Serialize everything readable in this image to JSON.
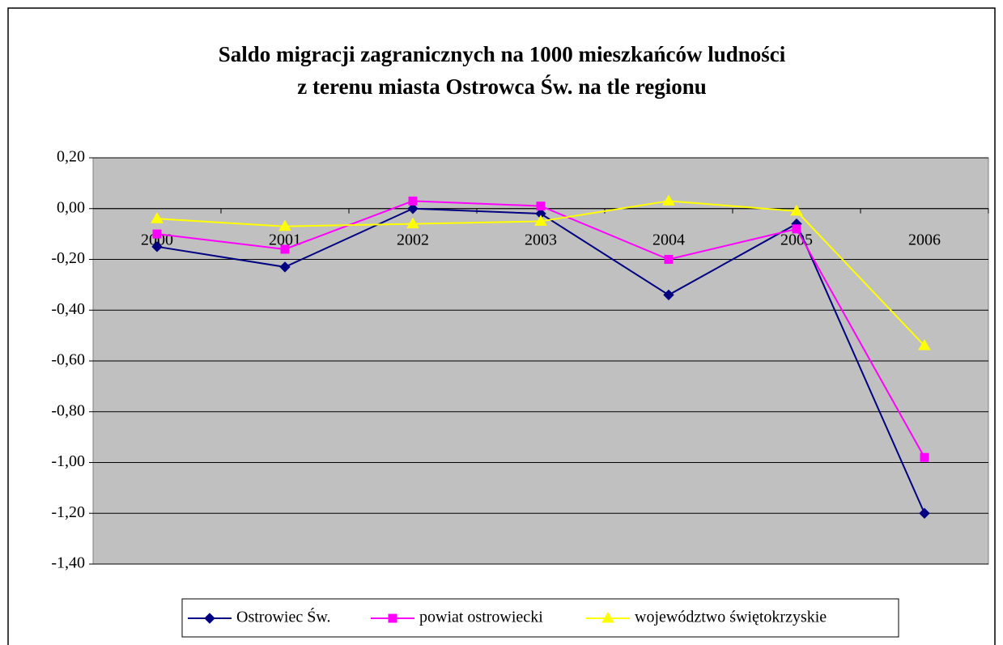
{
  "chart_data": {
    "type": "line",
    "title": [
      "Saldo migracji zagranicznych na 1000 mieszkańców ludności",
      "z terenu miasta Ostrowca Św. na tle regionu"
    ],
    "categories": [
      "2000",
      "2001",
      "2002",
      "2003",
      "2004",
      "2005",
      "2006"
    ],
    "series": [
      {
        "name": "Ostrowiec Św.",
        "color": "#000080",
        "marker": "diamond",
        "values": [
          -0.15,
          -0.23,
          0.0,
          -0.02,
          -0.34,
          -0.06,
          -1.2
        ]
      },
      {
        "name": "powiat ostrowiecki",
        "color": "#ff00ff",
        "marker": "square",
        "values": [
          -0.1,
          -0.16,
          0.03,
          0.01,
          -0.2,
          -0.08,
          -0.98
        ]
      },
      {
        "name": "województwo świętokrzyskie",
        "color": "#ffff00",
        "marker": "triangle",
        "values": [
          -0.04,
          -0.07,
          -0.06,
          -0.05,
          0.03,
          -0.01,
          -0.54
        ]
      }
    ],
    "ylim": [
      -1.4,
      0.2
    ],
    "yticks": [
      {
        "value": -1.4,
        "label": "-1,40"
      },
      {
        "value": -1.2,
        "label": "-1,20"
      },
      {
        "value": -1.0,
        "label": "-1,00"
      },
      {
        "value": -0.8,
        "label": "-0,80"
      },
      {
        "value": -0.6,
        "label": "-0,60"
      },
      {
        "value": -0.4,
        "label": "-0,40"
      },
      {
        "value": -0.2,
        "label": "-0,20"
      },
      {
        "value": 0.0,
        "label": "0,00"
      },
      {
        "value": 0.2,
        "label": "0,20"
      }
    ],
    "grid": true,
    "plot_background": "#c0c0c0",
    "legend": "bottom"
  }
}
